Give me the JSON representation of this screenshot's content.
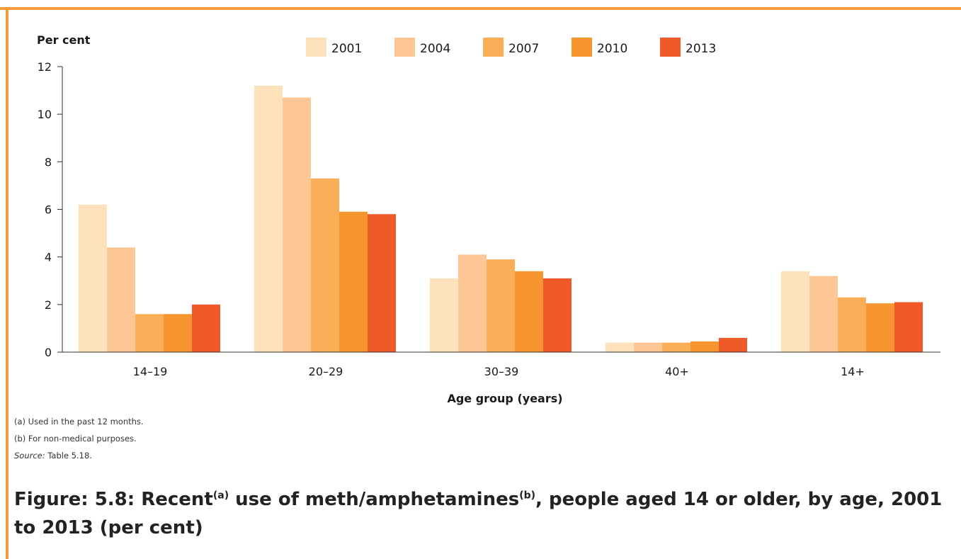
{
  "chart_data": {
    "type": "bar",
    "ylabel": "Per cent",
    "xlabel": "Age group (years)",
    "ylim": [
      0,
      12
    ],
    "yticks": [
      0,
      2,
      4,
      6,
      8,
      10,
      12
    ],
    "categories": [
      "14–19",
      "20–29",
      "30–39",
      "40+",
      "14+"
    ],
    "series": [
      {
        "name": "2001",
        "color": "#fde1bb",
        "values": [
          6.2,
          11.2,
          3.1,
          0.4,
          3.4
        ]
      },
      {
        "name": "2004",
        "color": "#fdc795",
        "values": [
          4.4,
          10.7,
          4.1,
          0.4,
          3.2
        ]
      },
      {
        "name": "2007",
        "color": "#fbae58",
        "values": [
          1.6,
          7.3,
          3.9,
          0.4,
          2.3
        ]
      },
      {
        "name": "2010",
        "color": "#f7962e",
        "values": [
          1.6,
          5.9,
          3.4,
          0.45,
          2.05
        ]
      },
      {
        "name": "2013",
        "color": "#f05a28",
        "values": [
          2.0,
          5.8,
          3.1,
          0.6,
          2.1
        ]
      }
    ],
    "legend_position": "top-center",
    "grid": false
  },
  "notes": {
    "a": "(a)  Used in the past 12 months.",
    "b": "(b)  For non-medical purposes.",
    "source_label": "Source:",
    "source_text": " Table 5.18."
  },
  "caption": {
    "prefix": "Figure: 5.8: Recent",
    "sup_a": "(a)",
    "mid": " use of meth/amphetamines",
    "sup_b": "(b)",
    "suffix": ", people aged 14 or older, by age, 2001 to 2013 (per cent)"
  },
  "colors": {
    "frame": "#f39a3a"
  }
}
